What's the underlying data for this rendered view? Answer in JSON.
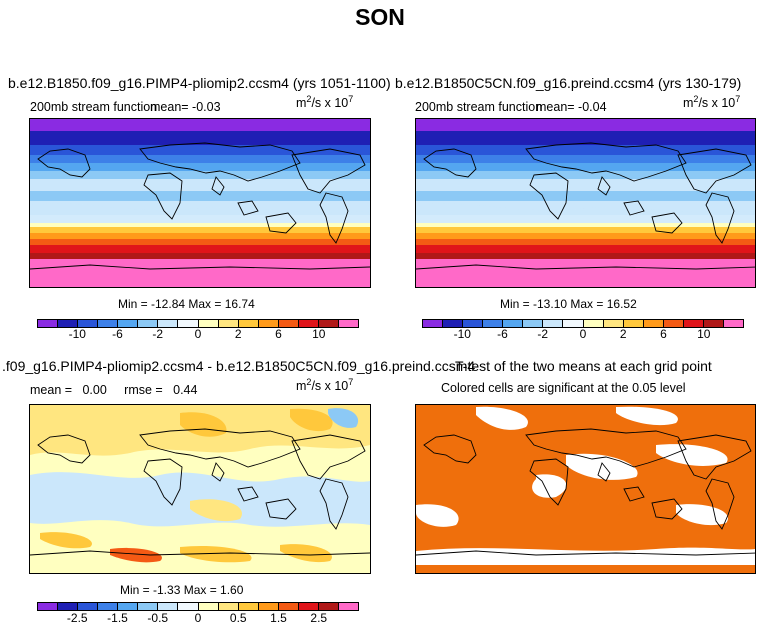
{
  "title": "SON",
  "panels": [
    {
      "id": "p1",
      "title": "b.e12.B1850.f09_g16.PIMP4-pliomip2.ccsm4 (yrs 1051-1100)",
      "left_label": "200mb stream function",
      "mean_label": "mean=   -0.03",
      "units_base": "m",
      "units_mid": "/s x 10",
      "units_exp1": "2",
      "units_exp2": "7",
      "minmax": "Min = -12.84 Max =   16.74",
      "colors": [
        "#8a2be2",
        "#1f1fb4",
        "#2a55d8",
        "#3d80e8",
        "#54a6f0",
        "#8cc9f5",
        "#cbe7fb",
        "#f2f9fe",
        "#ffffc0",
        "#ffe680",
        "#ffc83c",
        "#ff9a1a",
        "#f45a14",
        "#e0141a",
        "#b01818",
        "#ff69c8"
      ],
      "ticks": [
        "-10",
        "-6",
        "-2",
        "0",
        "2",
        "6",
        "10"
      ]
    },
    {
      "id": "p2",
      "title": "b.e12.B1850C5CN.f09_g16.preind.ccsm4 (yrs 130-179)",
      "left_label": "200mb stream function",
      "mean_label": "mean=   -0.04",
      "units_base": "m",
      "units_mid": "/s x 10",
      "units_exp1": "2",
      "units_exp2": "7",
      "minmax": "Min = -13.10 Max =   16.52",
      "colors": [
        "#8a2be2",
        "#1f1fb4",
        "#2a55d8",
        "#3d80e8",
        "#54a6f0",
        "#8cc9f5",
        "#cbe7fb",
        "#f2f9fe",
        "#ffffc0",
        "#ffe680",
        "#ffc83c",
        "#ff9a1a",
        "#f45a14",
        "#e0141a",
        "#b01818",
        "#ff69c8"
      ],
      "ticks": [
        "-10",
        "-6",
        "-2",
        "0",
        "2",
        "6",
        "10"
      ]
    },
    {
      "id": "p3",
      "title": ".f09_g16.PIMP4-pliomip2.ccsm4 - b.e12.B1850C5CN.f09_g16.preind.ccsm4",
      "left_label": "mean =   0.00     rmse =   0.44",
      "units_base": "m",
      "units_mid": "/s x 10",
      "units_exp1": "2",
      "units_exp2": "7",
      "minmax": "Min = -1.33 Max =   1.60",
      "colors": [
        "#8a2be2",
        "#1f1fb4",
        "#2a55d8",
        "#3d80e8",
        "#54a6f0",
        "#8cc9f5",
        "#cbe7fb",
        "#f2f9fe",
        "#ffffc0",
        "#ffe680",
        "#ffc83c",
        "#ff9a1a",
        "#f45a14",
        "#e0141a",
        "#b01818",
        "#ff69c8"
      ],
      "ticks": [
        "-2.5",
        "-1.5",
        "-0.5",
        "0",
        "0.5",
        "1.5",
        "2.5"
      ]
    },
    {
      "id": "p4",
      "title": "T-test of the two means at each grid point",
      "subtitle": "Colored cells are significant at the 0.05 level",
      "fill": "#ef6f0c"
    }
  ]
}
